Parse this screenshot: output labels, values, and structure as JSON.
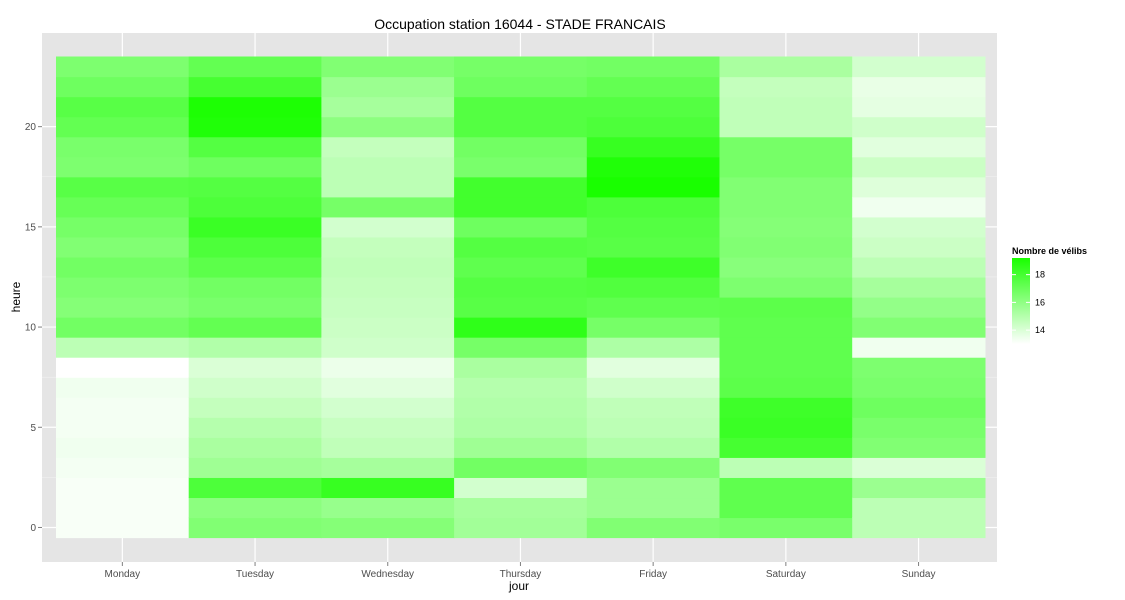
{
  "chart_data": {
    "type": "heatmap",
    "title": "Occupation station 16044 - STADE FRANCAIS",
    "xlabel": "jour",
    "ylabel": "heure",
    "categories": [
      "Monday",
      "Tuesday",
      "Wednesday",
      "Thursday",
      "Friday",
      "Saturday",
      "Sunday"
    ],
    "hours": [
      0,
      1,
      2,
      3,
      4,
      5,
      6,
      7,
      8,
      9,
      10,
      11,
      12,
      13,
      14,
      15,
      16,
      17,
      18,
      19,
      20,
      21,
      22,
      23
    ],
    "y_ticks": [
      0,
      5,
      10,
      15,
      20
    ],
    "ylim": [
      -0.5,
      23.5
    ],
    "legend": {
      "title": "Nombre de vélibs",
      "ticks": [
        14,
        16,
        18
      ],
      "range": [
        13.0,
        19.2
      ],
      "low_color": "#ffffff",
      "high_color": "#19ff00",
      "position": "right"
    },
    "grid": true,
    "panel_color": "#e5e5e5",
    "values": {
      "Monday": [
        13.2,
        13.2,
        13.2,
        13.3,
        13.4,
        13.3,
        13.3,
        13.4,
        13.0,
        14.8,
        16.8,
        16.3,
        16.5,
        16.8,
        16.4,
        16.7,
        17.1,
        17.5,
        16.5,
        16.6,
        17.2,
        17.5,
        16.9,
        16.5
      ],
      "Tuesday": [
        16.4,
        16.1,
        17.8,
        15.6,
        15.3,
        15.0,
        14.6,
        14.3,
        14.0,
        15.1,
        17.2,
        16.6,
        16.8,
        17.4,
        17.8,
        18.3,
        17.8,
        17.6,
        16.9,
        17.6,
        19.0,
        19.1,
        18.0,
        17.2
      ],
      "Wednesday": [
        16.3,
        15.8,
        18.4,
        15.4,
        14.7,
        14.5,
        14.2,
        13.8,
        13.5,
        14.3,
        14.4,
        14.5,
        14.6,
        14.7,
        14.6,
        14.2,
        16.7,
        14.8,
        14.8,
        14.6,
        16.1,
        15.4,
        15.7,
        16.4
      ],
      "Thursday": [
        15.5,
        15.4,
        14.2,
        16.8,
        15.6,
        15.2,
        15.1,
        15.0,
        15.3,
        16.7,
        18.6,
        17.5,
        17.6,
        17.3,
        17.6,
        16.9,
        18.1,
        18.1,
        16.6,
        16.8,
        17.6,
        17.6,
        16.9,
        16.7
      ],
      "Friday": [
        16.4,
        15.7,
        15.7,
        16.4,
        15.1,
        14.8,
        14.7,
        14.3,
        13.8,
        15.2,
        16.7,
        17.3,
        17.7,
        18.2,
        17.5,
        17.6,
        17.8,
        19.2,
        19.0,
        18.4,
        17.8,
        17.6,
        17.2,
        16.8
      ],
      "Saturday": [
        16.6,
        17.3,
        17.3,
        14.8,
        18.0,
        18.3,
        18.2,
        17.4,
        17.3,
        17.3,
        17.3,
        17.4,
        16.5,
        16.2,
        16.4,
        16.3,
        16.4,
        16.4,
        16.7,
        16.7,
        14.7,
        14.7,
        14.6,
        15.3
      ],
      "Sunday": [
        14.8,
        14.8,
        15.7,
        14.0,
        16.4,
        16.6,
        16.9,
        16.6,
        16.5,
        13.4,
        16.4,
        15.9,
        15.4,
        14.8,
        14.4,
        14.2,
        13.4,
        13.9,
        14.4,
        13.8,
        14.3,
        13.7,
        13.6,
        14.2
      ]
    }
  }
}
